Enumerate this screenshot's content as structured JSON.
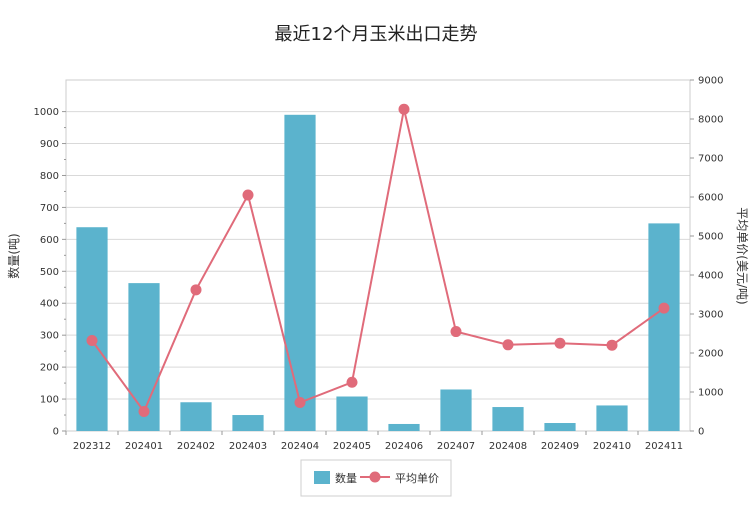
{
  "chart_data": {
    "type": "bar",
    "title": "最近12个月玉米出口走势",
    "categories": [
      "202312",
      "202401",
      "202402",
      "202403",
      "202404",
      "202405",
      "202406",
      "202407",
      "202408",
      "202409",
      "202410",
      "202411"
    ],
    "series": [
      {
        "name": "数量",
        "type": "bar",
        "axis": "left",
        "values": [
          638,
          463,
          90,
          50,
          990,
          108,
          22,
          130,
          75,
          25,
          80,
          650
        ]
      },
      {
        "name": "平均单价",
        "type": "line",
        "axis": "right",
        "values": [
          2320,
          500,
          3620,
          6050,
          730,
          1250,
          8250,
          2550,
          2210,
          2250,
          2200,
          3150
        ]
      }
    ],
    "ylabel_left": "数量(吨)",
    "ylabel_right": "平均单价(美元/吨)",
    "ylim_left": [
      0,
      1000
    ],
    "ylim_right": [
      0,
      9000
    ],
    "yticks_left": [
      "0",
      "100",
      "200",
      "300",
      "400",
      "500",
      "600",
      "700",
      "800",
      "900",
      "1000"
    ],
    "yticks_right": [
      "0",
      "1000",
      "2000",
      "3000",
      "4000",
      "5000",
      "6000",
      "7000",
      "8000",
      "9000"
    ],
    "grid": true,
    "legend_position": "bottom",
    "colors": {
      "bar": "#5BB3CD",
      "line": "#E06B7A",
      "grid": "#D9D9D9",
      "axis": "#999999"
    }
  }
}
